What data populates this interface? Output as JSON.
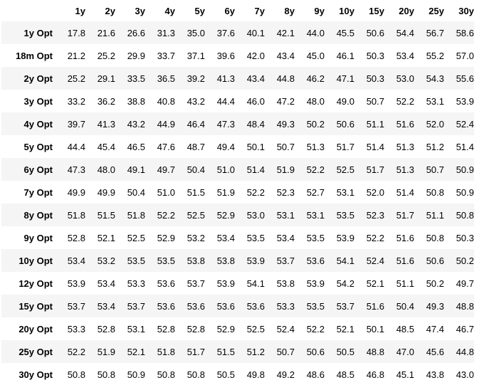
{
  "chart_data": {
    "type": "table",
    "columns": [
      "1y",
      "2y",
      "3y",
      "4y",
      "5y",
      "6y",
      "7y",
      "8y",
      "9y",
      "10y",
      "15y",
      "20y",
      "25y",
      "30y"
    ],
    "row_labels": [
      "1y Opt",
      "18m Opt",
      "2y Opt",
      "3y Opt",
      "4y Opt",
      "5y Opt",
      "6y Opt",
      "7y Opt",
      "8y Opt",
      "9y Opt",
      "10y Opt",
      "12y Opt",
      "15y Opt",
      "20y Opt",
      "25y Opt",
      "30y Opt"
    ],
    "values": [
      [
        "17.8",
        "21.6",
        "26.6",
        "31.3",
        "35.0",
        "37.6",
        "40.1",
        "42.1",
        "44.0",
        "45.5",
        "50.6",
        "54.4",
        "56.7",
        "58.6"
      ],
      [
        "21.2",
        "25.2",
        "29.9",
        "33.7",
        "37.1",
        "39.6",
        "42.0",
        "43.4",
        "45.0",
        "46.1",
        "50.3",
        "53.4",
        "55.2",
        "57.0"
      ],
      [
        "25.2",
        "29.1",
        "33.5",
        "36.5",
        "39.2",
        "41.3",
        "43.4",
        "44.8",
        "46.2",
        "47.1",
        "50.3",
        "53.0",
        "54.3",
        "55.6"
      ],
      [
        "33.2",
        "36.2",
        "38.8",
        "40.8",
        "43.2",
        "44.4",
        "46.0",
        "47.2",
        "48.0",
        "49.0",
        "50.7",
        "52.2",
        "53.1",
        "53.9"
      ],
      [
        "39.7",
        "41.3",
        "43.2",
        "44.9",
        "46.4",
        "47.3",
        "48.4",
        "49.3",
        "50.2",
        "50.6",
        "51.1",
        "51.6",
        "52.0",
        "52.4"
      ],
      [
        "44.4",
        "45.4",
        "46.5",
        "47.6",
        "48.7",
        "49.4",
        "50.1",
        "50.7",
        "51.3",
        "51.7",
        "51.4",
        "51.3",
        "51.2",
        "51.4"
      ],
      [
        "47.3",
        "48.0",
        "49.1",
        "49.7",
        "50.4",
        "51.0",
        "51.4",
        "51.9",
        "52.2",
        "52.5",
        "51.7",
        "51.3",
        "50.7",
        "50.9"
      ],
      [
        "49.9",
        "49.9",
        "50.4",
        "51.0",
        "51.5",
        "51.9",
        "52.2",
        "52.3",
        "52.7",
        "53.1",
        "52.0",
        "51.4",
        "50.8",
        "50.9"
      ],
      [
        "51.8",
        "51.5",
        "51.8",
        "52.2",
        "52.5",
        "52.9",
        "53.0",
        "53.1",
        "53.1",
        "53.5",
        "52.3",
        "51.7",
        "51.1",
        "50.8"
      ],
      [
        "52.8",
        "52.1",
        "52.5",
        "52.9",
        "53.2",
        "53.4",
        "53.5",
        "53.4",
        "53.5",
        "53.9",
        "52.2",
        "51.6",
        "50.8",
        "50.3"
      ],
      [
        "53.4",
        "53.2",
        "53.5",
        "53.5",
        "53.8",
        "53.8",
        "53.9",
        "53.7",
        "53.6",
        "54.1",
        "52.4",
        "51.6",
        "50.6",
        "50.2"
      ],
      [
        "53.9",
        "53.4",
        "53.3",
        "53.6",
        "53.7",
        "53.9",
        "54.1",
        "53.8",
        "53.9",
        "54.2",
        "52.1",
        "51.1",
        "50.2",
        "49.7"
      ],
      [
        "53.7",
        "53.4",
        "53.7",
        "53.6",
        "53.6",
        "53.6",
        "53.6",
        "53.3",
        "53.5",
        "53.7",
        "51.6",
        "50.4",
        "49.3",
        "48.8"
      ],
      [
        "53.3",
        "52.8",
        "53.1",
        "52.8",
        "52.8",
        "52.9",
        "52.5",
        "52.4",
        "52.2",
        "52.1",
        "50.1",
        "48.5",
        "47.4",
        "46.7"
      ],
      [
        "52.2",
        "51.9",
        "52.1",
        "51.8",
        "51.7",
        "51.5",
        "51.2",
        "50.7",
        "50.6",
        "50.5",
        "48.8",
        "47.0",
        "45.6",
        "44.8"
      ],
      [
        "50.8",
        "50.8",
        "50.9",
        "50.8",
        "50.8",
        "50.5",
        "49.8",
        "49.2",
        "48.6",
        "48.5",
        "46.8",
        "45.1",
        "43.8",
        "43.0"
      ]
    ]
  }
}
